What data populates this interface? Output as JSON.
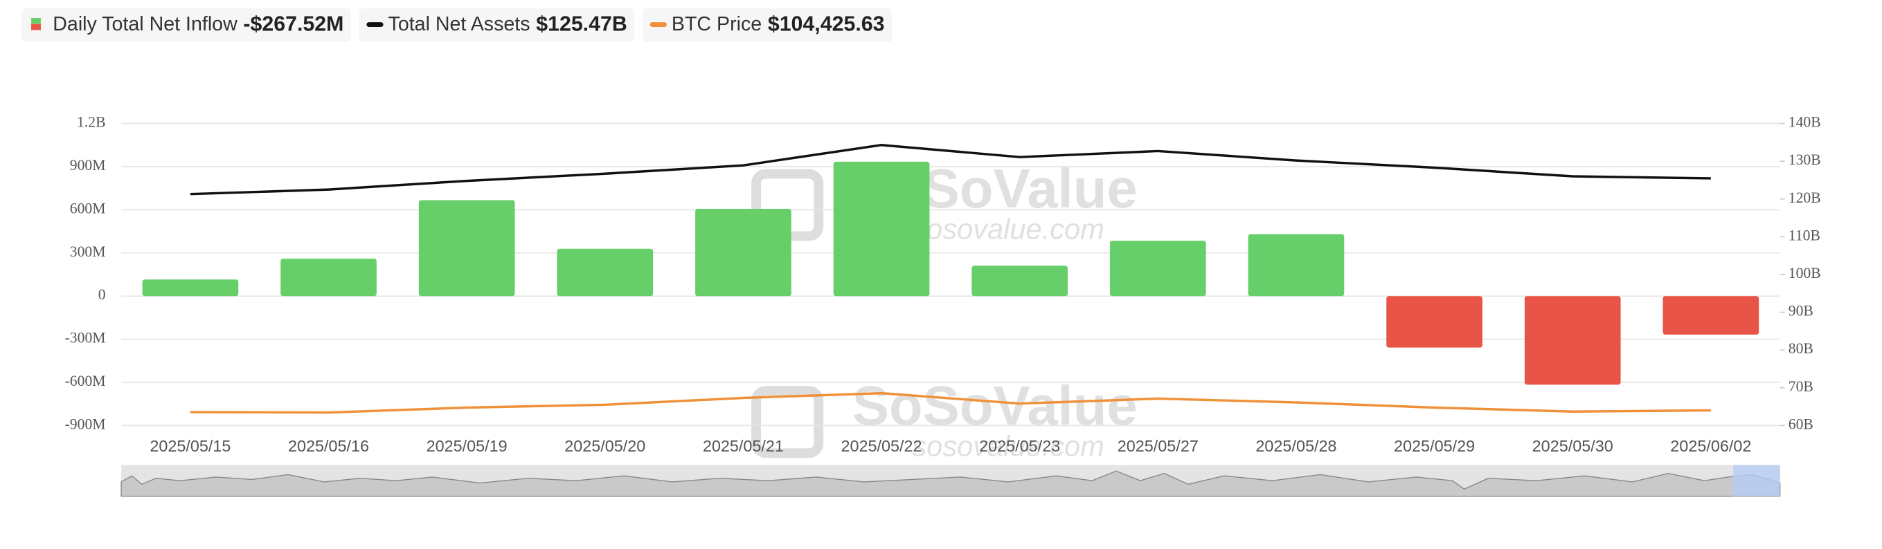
{
  "chart_data": {
    "type": "bar-line",
    "legend": [
      {
        "name": "Daily Total Net Inflow",
        "value_text": "-$267.52M",
        "color": "#e85445",
        "color2": "#67cf6a"
      },
      {
        "name": "Total Net Assets",
        "value_text": "$125.47B",
        "color": "#111111"
      },
      {
        "name": "BTC Price",
        "value_text": "$104,425.63",
        "color": "#f0913a"
      }
    ],
    "categories": [
      "2025/05/15",
      "2025/05/16",
      "2025/05/19",
      "2025/05/20",
      "2025/05/21",
      "2025/05/22",
      "2025/05/23",
      "2025/05/27",
      "2025/05/28",
      "2025/05/29",
      "2025/05/30",
      "2025/06/02"
    ],
    "ylim": [
      -900,
      1200
    ],
    "yticks": [
      {
        "value": -900,
        "label": "-900M"
      },
      {
        "value": -600,
        "label": "-600M"
      },
      {
        "value": -300,
        "label": "-300M"
      },
      0,
      {
        "value": 300,
        "label": "300M"
      },
      {
        "value": 600,
        "label": "600M"
      },
      {
        "value": 900,
        "label": "900M"
      },
      {
        "value": 1200,
        "label": "1.2B"
      }
    ],
    "y2lim": [
      60,
      140
    ],
    "y2ticks": [
      {
        "value": 60,
        "label": "60B"
      },
      {
        "value": 70,
        "label": "70B"
      },
      {
        "value": 80,
        "label": "80B"
      },
      {
        "value": 90,
        "label": "90B"
      },
      {
        "value": 100,
        "label": "100B"
      },
      {
        "value": 110,
        "label": "110B"
      },
      {
        "value": 120,
        "label": "120B"
      },
      {
        "value": 130,
        "label": "130B"
      },
      {
        "value": 140,
        "label": "140B"
      }
    ],
    "y3lim": [
      98000,
      226000
    ],
    "grid": true,
    "series": [
      {
        "name": "Daily Total Net Inflow",
        "type": "bar",
        "color": "#67cf6a",
        "negative_color": "#e85445",
        "values": [
          115,
          260,
          667,
          329,
          607,
          934,
          211,
          385,
          430,
          -358,
          -616,
          -267.52
        ]
      },
      {
        "name": "Total Net Assets",
        "type": "line",
        "axis": "y2",
        "color": "#111111",
        "values": [
          121.3,
          122.5,
          124.8,
          126.7,
          128.9,
          134.3,
          131.1,
          132.7,
          130.2,
          128.3,
          126.0,
          125.47
        ]
      },
      {
        "name": "BTC Price",
        "type": "line",
        "axis": "y3",
        "color": "#f0913a",
        "values": [
          103700,
          103500,
          105600,
          106800,
          109700,
          111700,
          107300,
          109400,
          107800,
          105600,
          103900,
          104425.63
        ]
      }
    ],
    "watermark": {
      "brand": "SoSoValue",
      "site": "sosovalue.com"
    }
  }
}
